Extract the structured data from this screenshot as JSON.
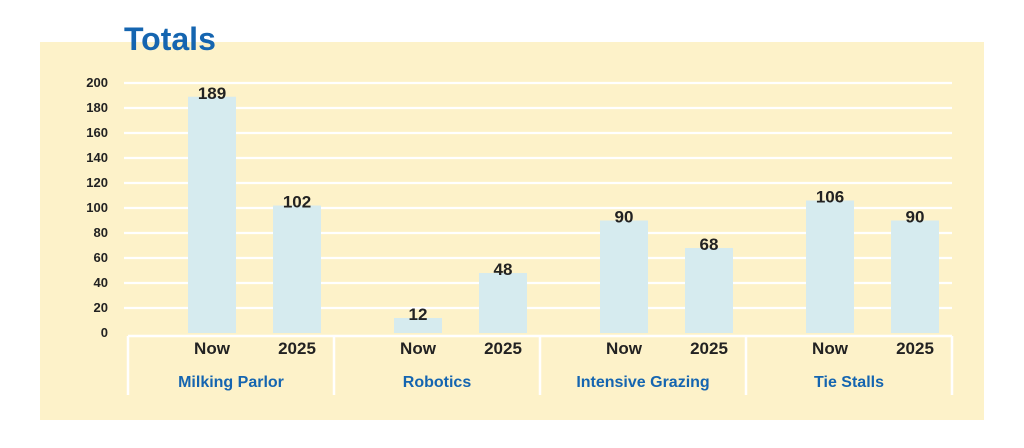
{
  "chart_data": {
    "type": "bar",
    "title": "Totals",
    "xlabel": "",
    "ylabel": "",
    "ylim": [
      0,
      200
    ],
    "yticks": [
      0,
      20,
      40,
      60,
      80,
      100,
      120,
      140,
      160,
      180,
      200
    ],
    "grid": true,
    "groups": [
      {
        "name": "Milking Parlor",
        "categories": [
          "Now",
          "2025"
        ],
        "values": [
          189,
          102
        ]
      },
      {
        "name": "Robotics",
        "categories": [
          "Now",
          "2025"
        ],
        "values": [
          12,
          48
        ]
      },
      {
        "name": "Intensive Grazing",
        "categories": [
          "Now",
          "2025"
        ],
        "values": [
          90,
          68
        ]
      },
      {
        "name": "Tie Stalls",
        "categories": [
          "Now",
          "2025"
        ],
        "values": [
          106,
          90
        ]
      }
    ]
  },
  "colors": {
    "panel_bg": "#fdf2c9",
    "bar_fill": "#d6ebef",
    "grid_line": "#ffffff",
    "title": "#1565b0",
    "group_label": "#1565b0",
    "text": "#222222"
  }
}
